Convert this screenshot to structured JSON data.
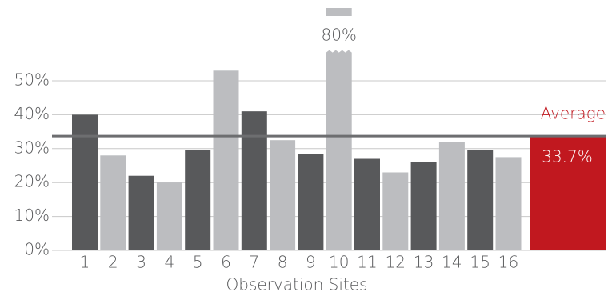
{
  "chart_data": {
    "type": "bar",
    "categories": [
      "1",
      "2",
      "3",
      "4",
      "5",
      "6",
      "7",
      "8",
      "9",
      "10",
      "11",
      "12",
      "13",
      "14",
      "15",
      "16"
    ],
    "values": [
      40,
      28,
      22,
      20,
      29.5,
      53,
      41,
      32.5,
      28.5,
      80,
      27,
      23,
      26,
      32,
      29.5,
      27.5
    ],
    "value_labels": [
      null,
      null,
      null,
      null,
      null,
      null,
      null,
      null,
      null,
      "80%",
      null,
      null,
      null,
      null,
      null,
      null
    ],
    "colors": [
      "#58595b",
      "#bcbdc0"
    ],
    "xlabel": "Observation Sites",
    "ylim": [
      0,
      60
    ],
    "yticks": [
      {
        "value": 0,
        "label": "0%"
      },
      {
        "value": 10,
        "label": "10%"
      },
      {
        "value": 20,
        "label": "20%"
      },
      {
        "value": 30,
        "label": "30%"
      },
      {
        "value": 40,
        "label": "40%"
      },
      {
        "value": 50,
        "label": "50%"
      }
    ],
    "grid": true,
    "average": {
      "label": "Average",
      "value": 33.7,
      "value_label": "33.7%",
      "color": "#c1181f"
    }
  }
}
